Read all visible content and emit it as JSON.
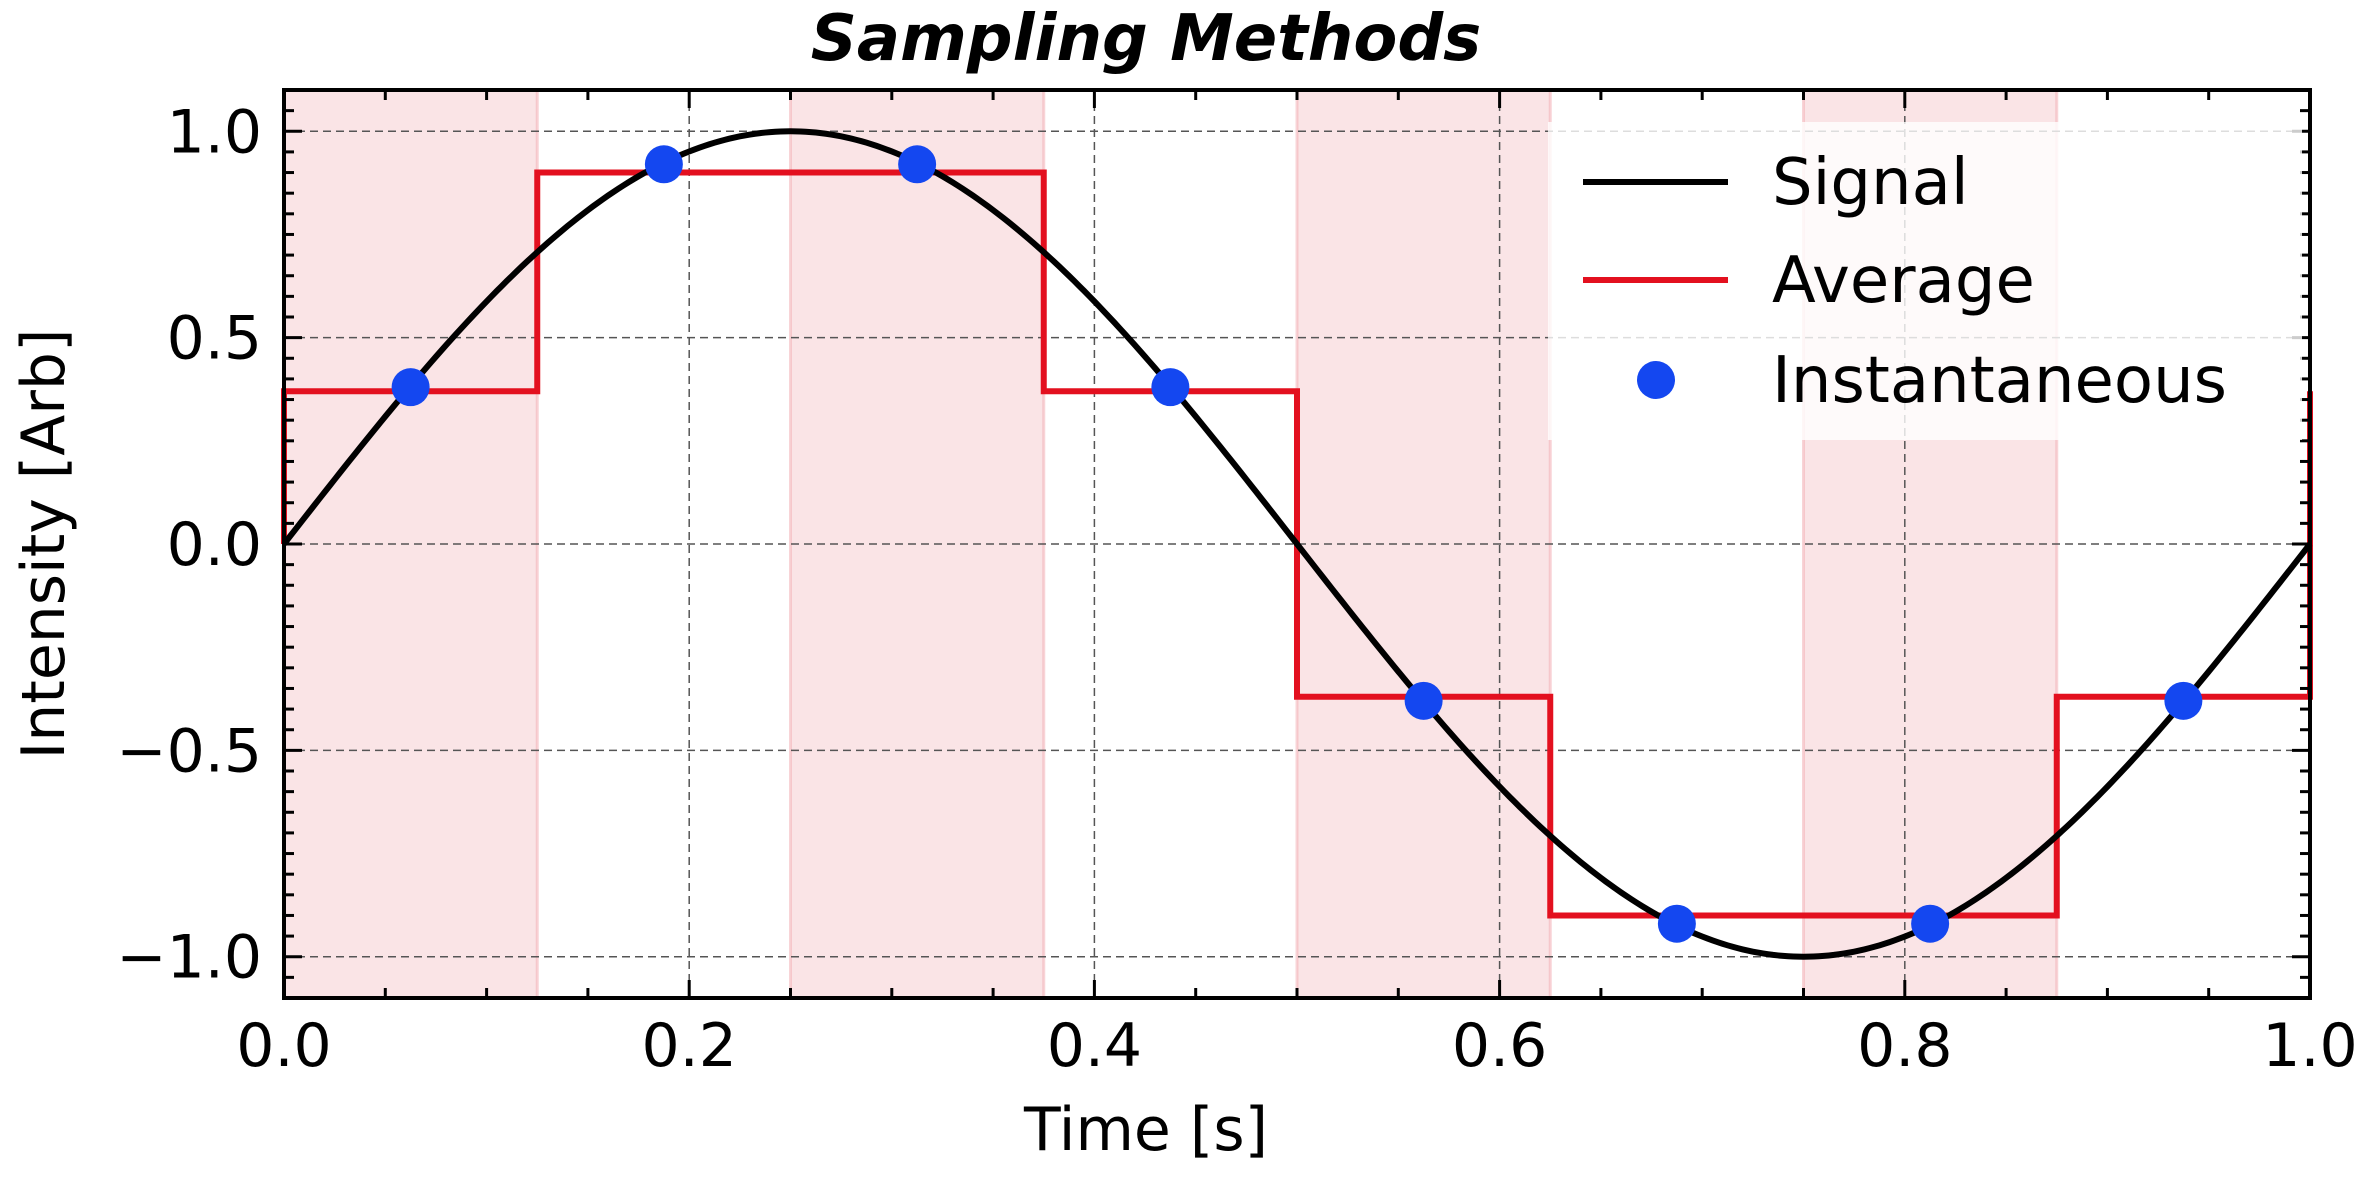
{
  "chart_data": {
    "type": "line",
    "title": "Sampling Methods",
    "xlabel": "Time [s]",
    "ylabel": "Intensity [Arb]",
    "xlim": [
      0,
      1
    ],
    "ylim": [
      -1.1,
      1.1
    ],
    "x_ticks": [
      0.0,
      0.2,
      0.4,
      0.6,
      0.8,
      1.0
    ],
    "x_tick_labels": [
      "0.0",
      "0.2",
      "0.4",
      "0.6",
      "0.8",
      "1.0"
    ],
    "y_ticks": [
      1.0,
      0.5,
      0.0,
      -0.5,
      -1.0
    ],
    "y_tick_labels": [
      "1.0",
      "0.5",
      "0.0",
      "−0.5",
      "−1.0"
    ],
    "grid": true,
    "legend_position": "top-right",
    "shaded_intervals": [
      [
        0.0,
        0.125
      ],
      [
        0.25,
        0.375
      ],
      [
        0.5,
        0.625
      ],
      [
        0.75,
        0.875
      ]
    ],
    "series": [
      {
        "name": "Signal",
        "kind": "line",
        "color": "#000000",
        "function": "sin(2*pi*t)"
      },
      {
        "name": "Average",
        "kind": "step",
        "color": "#e3101f",
        "edges": [
          0.0,
          0.125,
          0.25,
          0.375,
          0.5,
          0.625,
          0.75,
          0.875,
          1.0
        ],
        "values": [
          0.37,
          0.9,
          0.9,
          0.37,
          -0.37,
          -0.9,
          -0.9,
          -0.37
        ]
      },
      {
        "name": "Instantaneous",
        "kind": "scatter",
        "color": "#1447f0",
        "x": [
          0.0625,
          0.1875,
          0.3125,
          0.4375,
          0.5625,
          0.6875,
          0.8125,
          0.9375
        ],
        "y": [
          0.38,
          0.92,
          0.92,
          0.38,
          -0.38,
          -0.92,
          -0.92,
          -0.38
        ]
      }
    ]
  }
}
